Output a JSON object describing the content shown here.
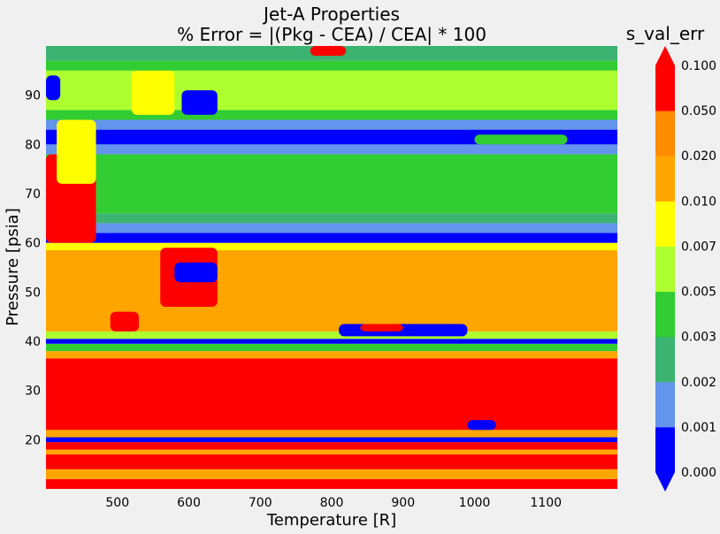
{
  "chart_data": {
    "type": "heatmap",
    "subtype": "filled-contour",
    "title": "Jet-A Properties",
    "subtitle": "% Error = |(Pkg - CEA) / CEA| * 100",
    "xlabel": "Temperature [R]",
    "ylabel": "Pressure [psia]",
    "xlim": [
      400,
      1200
    ],
    "ylim": [
      10,
      100
    ],
    "xticks": [
      500,
      600,
      700,
      800,
      900,
      1000,
      1100
    ],
    "yticks": [
      20,
      30,
      40,
      50,
      60,
      70,
      80,
      90
    ],
    "colorbar": {
      "title": "s_val_err",
      "levels": [
        0.0,
        0.001,
        0.002,
        0.003,
        0.005,
        0.007,
        0.01,
        0.02,
        0.05,
        0.1
      ],
      "level_labels": [
        "0.000",
        "0.001",
        "0.002",
        "0.003",
        "0.005",
        "0.007",
        "0.010",
        "0.020",
        "0.050",
        "0.100"
      ],
      "colors": [
        "#0000ff",
        "#6495ed",
        "#3cb371",
        "#32cd32",
        "#adff2f",
        "#ffff00",
        "#ffa500",
        "#ff8c00",
        "#ff0000"
      ],
      "extend": "both",
      "under_color": "#0000ff",
      "over_color": "#ff0000"
    },
    "regions": [
      {
        "p_from": 10,
        "p_to": 12,
        "level_index": 8
      },
      {
        "p_from": 12,
        "p_to": 14,
        "level_index": 6
      },
      {
        "p_from": 14,
        "p_to": 17,
        "level_index": 8
      },
      {
        "p_from": 17,
        "p_to": 18,
        "level_index": 6
      },
      {
        "p_from": 18,
        "p_to": 19.5,
        "level_index": 8
      },
      {
        "p_from": 19.5,
        "p_to": 20.5,
        "level_index": 0
      },
      {
        "p_from": 20.5,
        "p_to": 22,
        "level_index": 6
      },
      {
        "p_from": 22,
        "p_to": 36.5,
        "level_index": 8
      },
      {
        "p_from": 36.5,
        "p_to": 38,
        "level_index": 6
      },
      {
        "p_from": 38,
        "p_to": 39.5,
        "level_index": 3
      },
      {
        "p_from": 39.5,
        "p_to": 40.5,
        "level_index": 0
      },
      {
        "p_from": 40.5,
        "p_to": 42,
        "level_index": 4
      },
      {
        "p_from": 42,
        "p_to": 58.5,
        "level_index": 6
      },
      {
        "p_from": 58.5,
        "p_to": 60,
        "level_index": 5
      },
      {
        "p_from": 60,
        "p_to": 62,
        "level_index": 0
      },
      {
        "p_from": 62,
        "p_to": 64,
        "level_index": 1
      },
      {
        "p_from": 64,
        "p_to": 66,
        "level_index": 2
      },
      {
        "p_from": 66,
        "p_to": 78,
        "level_index": 3
      },
      {
        "p_from": 78,
        "p_to": 80,
        "level_index": 1
      },
      {
        "p_from": 80,
        "p_to": 83,
        "level_index": 0
      },
      {
        "p_from": 83,
        "p_to": 85,
        "level_index": 1
      },
      {
        "p_from": 85,
        "p_to": 87,
        "level_index": 3
      },
      {
        "p_from": 87,
        "p_to": 95,
        "level_index": 4
      },
      {
        "p_from": 95,
        "p_to": 97,
        "level_index": 3
      },
      {
        "p_from": 97,
        "p_to": 100,
        "level_index": 2
      }
    ],
    "features": [
      {
        "t_from": 400,
        "t_to": 470,
        "p_from": 60,
        "p_to": 78,
        "level_index": 8
      },
      {
        "t_from": 415,
        "t_to": 470,
        "p_from": 72,
        "p_to": 85,
        "level_index": 5
      },
      {
        "t_from": 520,
        "t_to": 580,
        "p_from": 86,
        "p_to": 95,
        "level_index": 5
      },
      {
        "t_from": 590,
        "t_to": 640,
        "p_from": 86,
        "p_to": 91,
        "level_index": 0
      },
      {
        "t_from": 400,
        "t_to": 420,
        "p_from": 89,
        "p_to": 94,
        "level_index": 0
      },
      {
        "t_from": 560,
        "t_to": 640,
        "p_from": 47,
        "p_to": 59,
        "level_index": 8
      },
      {
        "t_from": 580,
        "t_to": 640,
        "p_from": 52,
        "p_to": 56,
        "level_index": 0
      },
      {
        "t_from": 810,
        "t_to": 990,
        "p_from": 41,
        "p_to": 43.5,
        "level_index": 0
      },
      {
        "t_from": 840,
        "t_to": 900,
        "p_from": 42,
        "p_to": 43.5,
        "level_index": 8
      },
      {
        "t_from": 490,
        "t_to": 530,
        "p_from": 42,
        "p_to": 46,
        "level_index": 8
      },
      {
        "t_from": 990,
        "t_to": 1030,
        "p_from": 22,
        "p_to": 24,
        "level_index": 0
      },
      {
        "t_from": 770,
        "t_to": 820,
        "p_from": 98,
        "p_to": 100,
        "level_index": 8
      },
      {
        "t_from": 1000,
        "t_to": 1130,
        "p_from": 80,
        "p_to": 82,
        "level_index": 3
      }
    ]
  }
}
